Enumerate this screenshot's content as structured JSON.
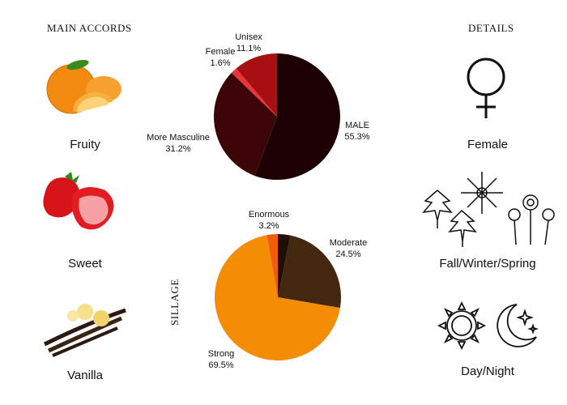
{
  "left_panel": {
    "heading": "MAIN ACCORDS",
    "accords": [
      {
        "label": "Fruity",
        "icon": "oranges-icon"
      },
      {
        "label": "Sweet",
        "icon": "strawberries-icon"
      },
      {
        "label": "Vanilla",
        "icon": "vanilla-icon"
      }
    ]
  },
  "right_panel": {
    "heading": "DETAILS",
    "details": [
      {
        "label": "Female",
        "icon": "female-symbol-icon"
      },
      {
        "label": "Fall/Winter/Spring",
        "icon": "seasons-icon"
      },
      {
        "label": "Day/Night",
        "icon": "sun-moon-icon"
      }
    ]
  },
  "sillage_label": "SILLAGE",
  "chart_data": [
    {
      "type": "pie",
      "slices": [
        {
          "label": "MALE",
          "value": 55.3,
          "display": "55.3%",
          "color": "#1c0004"
        },
        {
          "label": "More Masculine",
          "value": 31.2,
          "display": "31.2%",
          "color": "#3c0608"
        },
        {
          "label": "Female",
          "value": 1.6,
          "display": "1.6%",
          "color": "#e8343a"
        },
        {
          "label": "Unisex",
          "value": 11.1,
          "display": "11.1%",
          "color": "#a80f12"
        }
      ]
    },
    {
      "type": "pie",
      "slices": [
        {
          "label": "Enormous",
          "value": 3.2,
          "display": "3.2%",
          "color": "#1f0f05"
        },
        {
          "label": "Moderate",
          "value": 24.5,
          "display": "24.5%",
          "color": "#43270e"
        },
        {
          "label": "Strong",
          "value": 69.5,
          "display": "69.5%",
          "color": "#f48c06"
        },
        {
          "label": "",
          "value": 2.8,
          "display": "",
          "color": "#f25c0c"
        }
      ]
    }
  ]
}
